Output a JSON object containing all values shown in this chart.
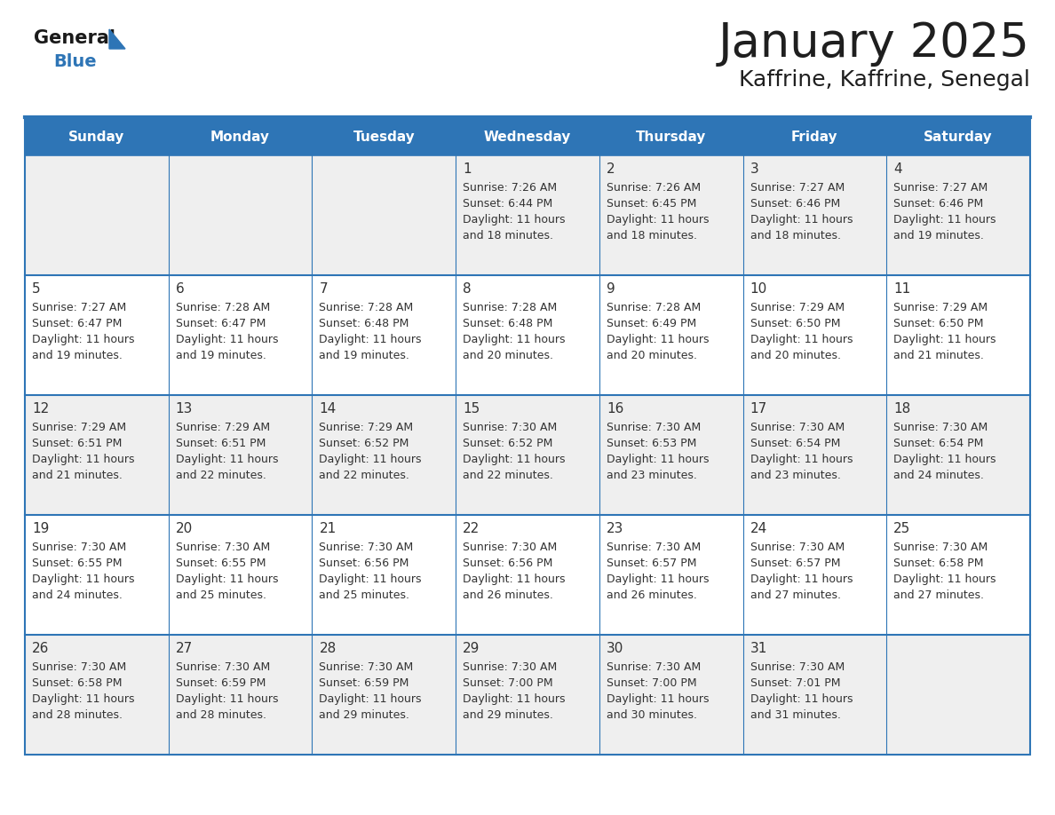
{
  "title": "January 2025",
  "subtitle": "Kaffrine, Kaffrine, Senegal",
  "header_bg": "#2E75B6",
  "header_text_color": "#FFFFFF",
  "cell_bg_odd": "#EFEFEF",
  "cell_bg_even": "#FFFFFF",
  "day_names": [
    "Sunday",
    "Monday",
    "Tuesday",
    "Wednesday",
    "Thursday",
    "Friday",
    "Saturday"
  ],
  "title_color": "#1F1F1F",
  "subtitle_color": "#1F1F1F",
  "cell_text_color": "#333333",
  "day_num_color": "#333333",
  "grid_color": "#2E75B6",
  "logo_text_color": "#1A1A1A",
  "logo_blue_color": "#2E75B6",
  "days": [
    {
      "date": 1,
      "col": 3,
      "row": 0,
      "sunrise": "7:26 AM",
      "sunset": "6:44 PM",
      "daylight": "11 hours and 18 minutes."
    },
    {
      "date": 2,
      "col": 4,
      "row": 0,
      "sunrise": "7:26 AM",
      "sunset": "6:45 PM",
      "daylight": "11 hours and 18 minutes."
    },
    {
      "date": 3,
      "col": 5,
      "row": 0,
      "sunrise": "7:27 AM",
      "sunset": "6:46 PM",
      "daylight": "11 hours and 18 minutes."
    },
    {
      "date": 4,
      "col": 6,
      "row": 0,
      "sunrise": "7:27 AM",
      "sunset": "6:46 PM",
      "daylight": "11 hours and 19 minutes."
    },
    {
      "date": 5,
      "col": 0,
      "row": 1,
      "sunrise": "7:27 AM",
      "sunset": "6:47 PM",
      "daylight": "11 hours and 19 minutes."
    },
    {
      "date": 6,
      "col": 1,
      "row": 1,
      "sunrise": "7:28 AM",
      "sunset": "6:47 PM",
      "daylight": "11 hours and 19 minutes."
    },
    {
      "date": 7,
      "col": 2,
      "row": 1,
      "sunrise": "7:28 AM",
      "sunset": "6:48 PM",
      "daylight": "11 hours and 19 minutes."
    },
    {
      "date": 8,
      "col": 3,
      "row": 1,
      "sunrise": "7:28 AM",
      "sunset": "6:48 PM",
      "daylight": "11 hours and 20 minutes."
    },
    {
      "date": 9,
      "col": 4,
      "row": 1,
      "sunrise": "7:28 AM",
      "sunset": "6:49 PM",
      "daylight": "11 hours and 20 minutes."
    },
    {
      "date": 10,
      "col": 5,
      "row": 1,
      "sunrise": "7:29 AM",
      "sunset": "6:50 PM",
      "daylight": "11 hours and 20 minutes."
    },
    {
      "date": 11,
      "col": 6,
      "row": 1,
      "sunrise": "7:29 AM",
      "sunset": "6:50 PM",
      "daylight": "11 hours and 21 minutes."
    },
    {
      "date": 12,
      "col": 0,
      "row": 2,
      "sunrise": "7:29 AM",
      "sunset": "6:51 PM",
      "daylight": "11 hours and 21 minutes."
    },
    {
      "date": 13,
      "col": 1,
      "row": 2,
      "sunrise": "7:29 AM",
      "sunset": "6:51 PM",
      "daylight": "11 hours and 22 minutes."
    },
    {
      "date": 14,
      "col": 2,
      "row": 2,
      "sunrise": "7:29 AM",
      "sunset": "6:52 PM",
      "daylight": "11 hours and 22 minutes."
    },
    {
      "date": 15,
      "col": 3,
      "row": 2,
      "sunrise": "7:30 AM",
      "sunset": "6:52 PM",
      "daylight": "11 hours and 22 minutes."
    },
    {
      "date": 16,
      "col": 4,
      "row": 2,
      "sunrise": "7:30 AM",
      "sunset": "6:53 PM",
      "daylight": "11 hours and 23 minutes."
    },
    {
      "date": 17,
      "col": 5,
      "row": 2,
      "sunrise": "7:30 AM",
      "sunset": "6:54 PM",
      "daylight": "11 hours and 23 minutes."
    },
    {
      "date": 18,
      "col": 6,
      "row": 2,
      "sunrise": "7:30 AM",
      "sunset": "6:54 PM",
      "daylight": "11 hours and 24 minutes."
    },
    {
      "date": 19,
      "col": 0,
      "row": 3,
      "sunrise": "7:30 AM",
      "sunset": "6:55 PM",
      "daylight": "11 hours and 24 minutes."
    },
    {
      "date": 20,
      "col": 1,
      "row": 3,
      "sunrise": "7:30 AM",
      "sunset": "6:55 PM",
      "daylight": "11 hours and 25 minutes."
    },
    {
      "date": 21,
      "col": 2,
      "row": 3,
      "sunrise": "7:30 AM",
      "sunset": "6:56 PM",
      "daylight": "11 hours and 25 minutes."
    },
    {
      "date": 22,
      "col": 3,
      "row": 3,
      "sunrise": "7:30 AM",
      "sunset": "6:56 PM",
      "daylight": "11 hours and 26 minutes."
    },
    {
      "date": 23,
      "col": 4,
      "row": 3,
      "sunrise": "7:30 AM",
      "sunset": "6:57 PM",
      "daylight": "11 hours and 26 minutes."
    },
    {
      "date": 24,
      "col": 5,
      "row": 3,
      "sunrise": "7:30 AM",
      "sunset": "6:57 PM",
      "daylight": "11 hours and 27 minutes."
    },
    {
      "date": 25,
      "col": 6,
      "row": 3,
      "sunrise": "7:30 AM",
      "sunset": "6:58 PM",
      "daylight": "11 hours and 27 minutes."
    },
    {
      "date": 26,
      "col": 0,
      "row": 4,
      "sunrise": "7:30 AM",
      "sunset": "6:58 PM",
      "daylight": "11 hours and 28 minutes."
    },
    {
      "date": 27,
      "col": 1,
      "row": 4,
      "sunrise": "7:30 AM",
      "sunset": "6:59 PM",
      "daylight": "11 hours and 28 minutes."
    },
    {
      "date": 28,
      "col": 2,
      "row": 4,
      "sunrise": "7:30 AM",
      "sunset": "6:59 PM",
      "daylight": "11 hours and 29 minutes."
    },
    {
      "date": 29,
      "col": 3,
      "row": 4,
      "sunrise": "7:30 AM",
      "sunset": "7:00 PM",
      "daylight": "11 hours and 29 minutes."
    },
    {
      "date": 30,
      "col": 4,
      "row": 4,
      "sunrise": "7:30 AM",
      "sunset": "7:00 PM",
      "daylight": "11 hours and 30 minutes."
    },
    {
      "date": 31,
      "col": 5,
      "row": 4,
      "sunrise": "7:30 AM",
      "sunset": "7:01 PM",
      "daylight": "11 hours and 31 minutes."
    }
  ]
}
